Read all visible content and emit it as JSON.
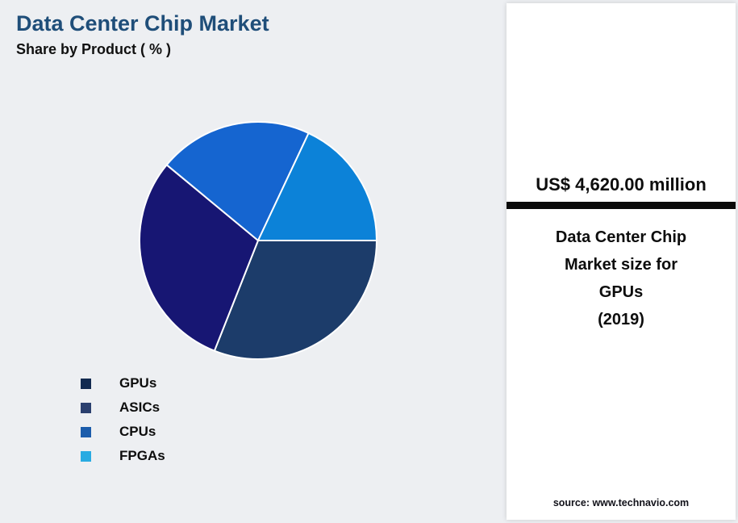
{
  "header": {
    "title": "Data Center Chip Market",
    "subtitle": "Share by Product ( % )"
  },
  "chart_data": {
    "type": "pie",
    "title": "Data Center Chip Market Share by Product (%)",
    "labels": [
      "GPUs",
      "ASICs",
      "CPUs",
      "FPGAs"
    ],
    "values": [
      31,
      30,
      21,
      18
    ],
    "colors": [
      "#1c3c6a",
      "#171673",
      "#1565d0",
      "#0c82d8"
    ],
    "start_angle_deg": 0,
    "direction": "clockwise",
    "legend_position": "bottom-left",
    "data_labels": "none"
  },
  "legend": {
    "items": [
      {
        "label": "GPUs",
        "color": "#122a50"
      },
      {
        "label": "ASICs",
        "color": "#2a3f6e"
      },
      {
        "label": "CPUs",
        "color": "#1b5cab"
      },
      {
        "label": "FPGAs",
        "color": "#29abe2"
      }
    ]
  },
  "panel": {
    "value": "US$ 4,620.00 million",
    "description_lines": [
      "Data Center Chip",
      "Market size for",
      "GPUs",
      "(2019)"
    ],
    "source": "source: www.technavio.com"
  }
}
